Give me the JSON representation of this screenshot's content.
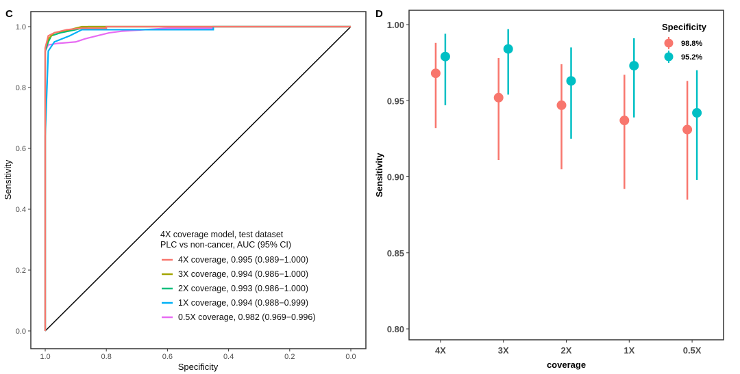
{
  "chart_data": [
    {
      "panel": "C",
      "type": "line",
      "xlabel": "Specificity",
      "ylabel": "Sensitivity",
      "xlim": [
        1.0,
        0.0
      ],
      "ylim": [
        0.0,
        1.0
      ],
      "x_reversed": true,
      "xticks": [
        "1.0",
        "0.8",
        "0.6",
        "0.4",
        "0.2",
        "0.0"
      ],
      "yticks": [
        "0.0",
        "0.2",
        "0.4",
        "0.6",
        "0.8",
        "1.0"
      ],
      "grid": false,
      "legend_position": "bottom-right",
      "legend_title": [
        "4X coverage model, test dataset",
        "PLC vs non-cancer, AUC (95% CI)"
      ],
      "series": [
        {
          "name": "4X coverage, 0.995 (0.989−1.000)",
          "color": "#F8766D",
          "specificity": [
            1,
            1,
            0.99,
            0.97,
            0.93,
            0.88,
            0.8,
            0.8,
            0
          ],
          "sensitivity": [
            0,
            0.93,
            0.97,
            0.98,
            0.99,
            0.995,
            0.995,
            1,
            1
          ]
        },
        {
          "name": "3X coverage, 0.994 (0.986−1.000)",
          "color": "#A3A500",
          "specificity": [
            1,
            1,
            0.99,
            0.97,
            0.92,
            0.88,
            0
          ],
          "sensitivity": [
            0,
            0.93,
            0.96,
            0.98,
            0.99,
            1,
            1
          ]
        },
        {
          "name": "2X coverage, 0.993 (0.986−1.000)",
          "color": "#00BF7D",
          "specificity": [
            1,
            1,
            0.99,
            0.98,
            0.95,
            0.9,
            0.86,
            0
          ],
          "sensitivity": [
            0,
            0.92,
            0.95,
            0.97,
            0.98,
            0.99,
            1,
            1
          ]
        },
        {
          "name": "1X coverage, 0.994 (0.988−0.999)",
          "color": "#00B0F6",
          "specificity": [
            1,
            1,
            1,
            0.99,
            0.97,
            0.92,
            0.88,
            0.45,
            0.45,
            0
          ],
          "sensitivity": [
            0,
            0.14,
            0.64,
            0.92,
            0.95,
            0.97,
            0.99,
            0.99,
            1,
            1
          ]
        },
        {
          "name": "0.5X coverage, 0.982 (0.969−0.996)",
          "color": "#E76BF3",
          "specificity": [
            1,
            1,
            0.99,
            0.96,
            0.9,
            0.87,
            0.83,
            0.79,
            0.75,
            0.6,
            0.45,
            0.45,
            0
          ],
          "sensitivity": [
            0,
            0.92,
            0.94,
            0.945,
            0.95,
            0.96,
            0.97,
            0.98,
            0.985,
            0.995,
            0.995,
            1,
            1
          ]
        }
      ],
      "reference_line": {
        "color": "#000000",
        "from": [
          1,
          0
        ],
        "to": [
          0,
          1
        ]
      }
    },
    {
      "panel": "D",
      "type": "scatter",
      "xlabel": "coverage",
      "ylabel": "Sensitivity",
      "categories": [
        "4X",
        "3X",
        "2X",
        "1X",
        "0.5X"
      ],
      "ylim": [
        0.79,
        1.008
      ],
      "yticks": [
        "0.80",
        "0.85",
        "0.90",
        "0.95",
        "1.00"
      ],
      "grid": false,
      "legend_title": "Specificity",
      "legend_position": "top-right",
      "series": [
        {
          "name": "98.8%",
          "color": "#F8766D",
          "values": [
            0.968,
            0.952,
            0.947,
            0.937,
            0.931
          ],
          "lower": [
            0.932,
            0.911,
            0.905,
            0.892,
            0.885
          ],
          "upper": [
            0.988,
            0.978,
            0.974,
            0.967,
            0.963
          ]
        },
        {
          "name": "95.2%",
          "color": "#00BFC4",
          "values": [
            0.979,
            0.984,
            0.963,
            0.973,
            0.942
          ],
          "lower": [
            0.947,
            0.954,
            0.925,
            0.939,
            0.898
          ],
          "upper": [
            0.994,
            0.997,
            0.985,
            0.991,
            0.97
          ]
        }
      ]
    }
  ]
}
